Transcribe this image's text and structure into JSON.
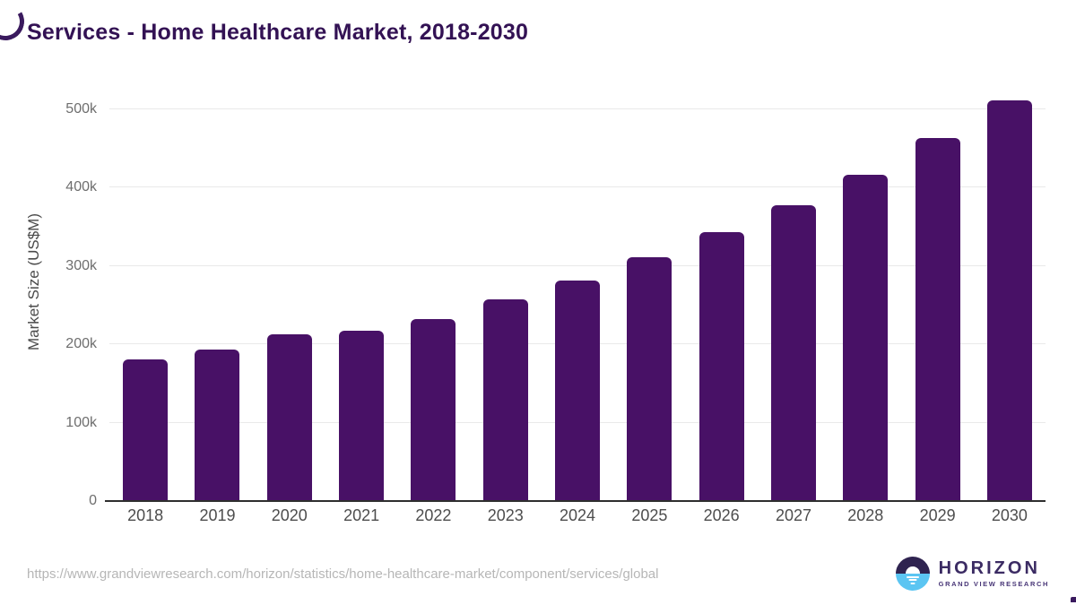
{
  "title": "Services - Home Healthcare Market, 2018-2030",
  "chart_data": {
    "type": "bar",
    "title": "Services - Home Healthcare Market, 2018-2030",
    "categories": [
      "2018",
      "2019",
      "2020",
      "2021",
      "2022",
      "2023",
      "2024",
      "2025",
      "2026",
      "2027",
      "2028",
      "2029",
      "2030"
    ],
    "values": [
      181000,
      193000,
      213000,
      217000,
      232000,
      257000,
      282000,
      311000,
      343000,
      378000,
      417000,
      463000,
      512000
    ],
    "xlabel": "",
    "ylabel": "Market Size (US$M)",
    "ylim": [
      0,
      520000
    ],
    "yticks": [
      {
        "label": "0",
        "value": 0
      },
      {
        "label": "100k",
        "value": 100000
      },
      {
        "label": "200k",
        "value": 200000
      },
      {
        "label": "300k",
        "value": 300000
      },
      {
        "label": "400k",
        "value": 400000
      },
      {
        "label": "500k",
        "value": 500000
      }
    ],
    "grid": true,
    "legend": false,
    "bar_color": "#481166"
  },
  "colors": {
    "title_text": "#331254",
    "bar": "#481166",
    "gridline": "#e9e9e9",
    "baseline": "#2e2e2e",
    "axis_text": "#6e6e6e",
    "source_text": "#b6b6b6",
    "logo_dark": "#2f2350",
    "logo_blue": "#5bc5f2",
    "logo_text": "#3b2b63"
  },
  "footer": {
    "source_url": "https://www.grandviewresearch.com/horizon/statistics/home-healthcare-market/component/services/global",
    "logo_name": "HORIZON",
    "logo_subtitle": "GRAND VIEW RESEARCH"
  }
}
